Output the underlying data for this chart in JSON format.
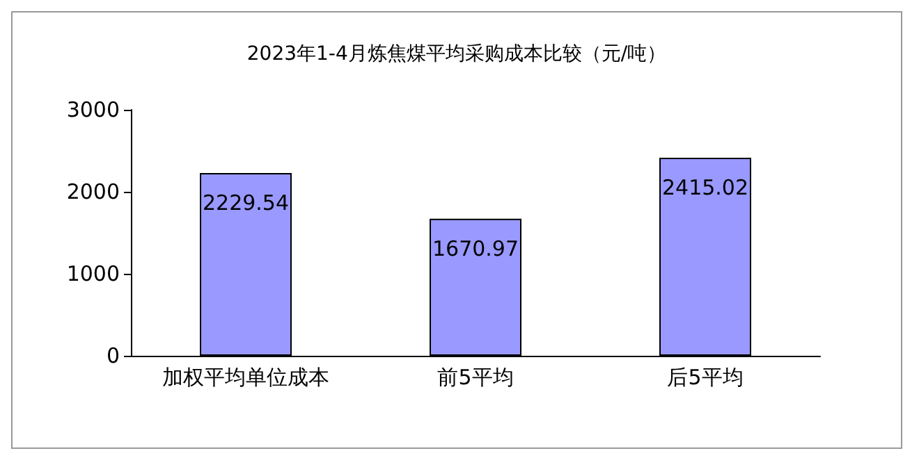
{
  "chart_data": {
    "type": "bar",
    "title": "2023年1-4月炼焦煤平均采购成本比较（元/吨）",
    "categories": [
      "加权平均单位成本",
      "前5平均",
      "后5平均"
    ],
    "values": [
      2229.54,
      1670.97,
      2415.02
    ],
    "color": "#9999ff",
    "ylim": [
      0,
      3000
    ],
    "yticks": [
      0,
      1000,
      2000,
      3000
    ],
    "grid": false,
    "data_labels": true
  }
}
